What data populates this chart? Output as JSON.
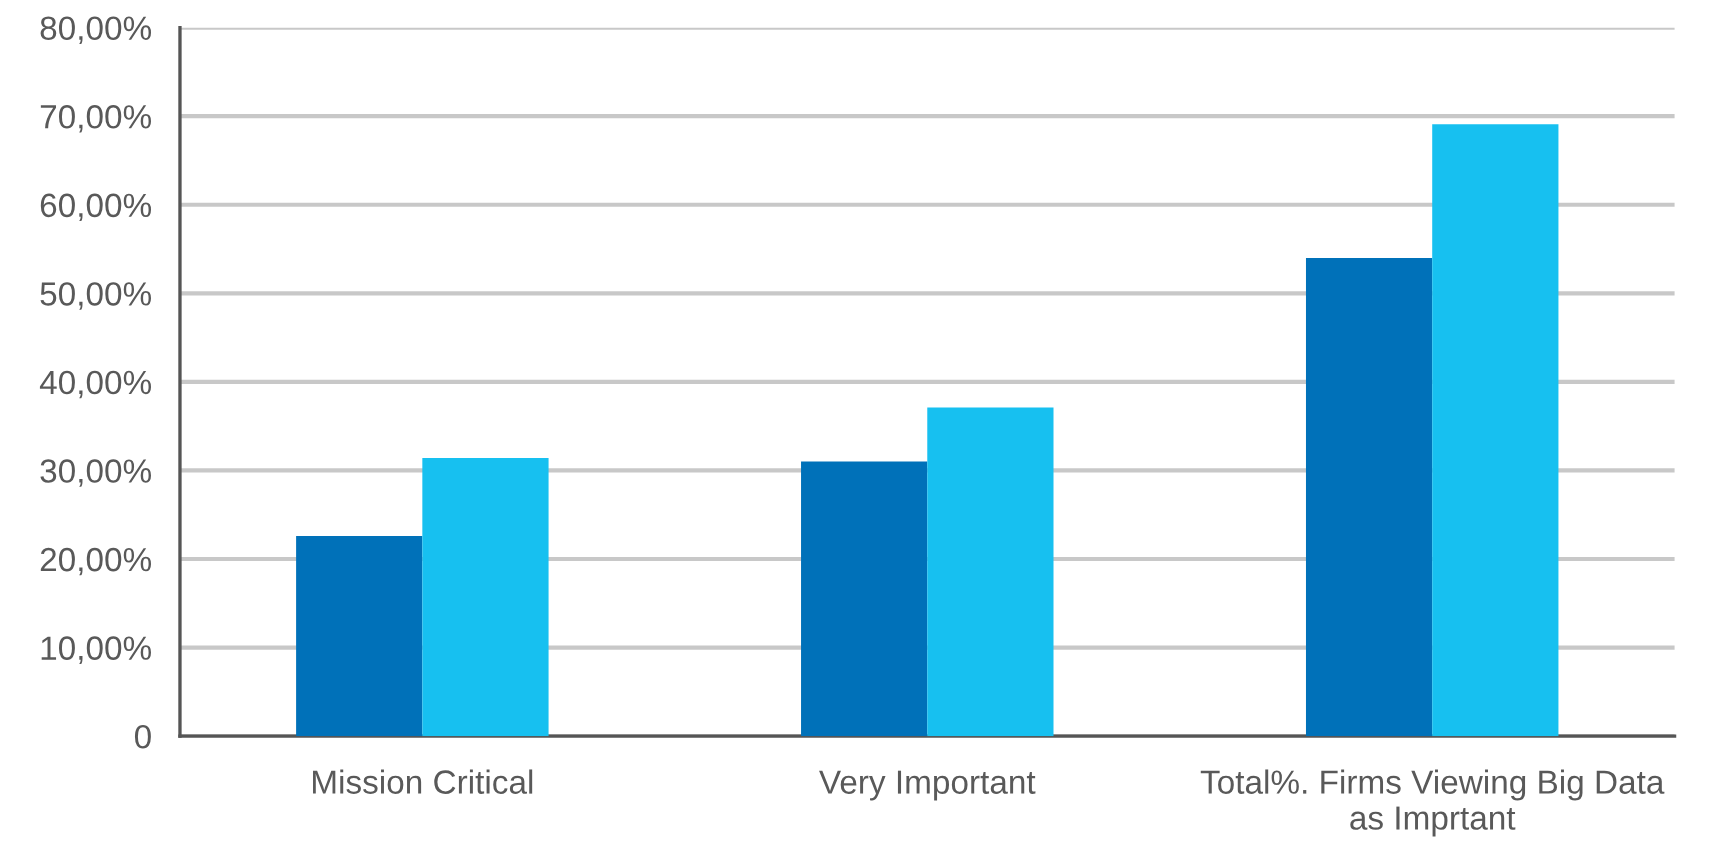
{
  "chart_data": {
    "type": "bar",
    "categories": [
      "Mission Critical",
      "Very Important",
      "Total%. Firms Viewing Big Data\nas Imprtant"
    ],
    "series": [
      {
        "color": "#0071b9",
        "values": [
          22.6,
          31.0,
          54.0
        ]
      },
      {
        "color": "#17c0f0",
        "values": [
          31.4,
          37.1,
          69.1
        ]
      }
    ],
    "ylim": [
      0,
      80
    ],
    "yticks": [
      {
        "value": 0,
        "label": "0"
      },
      {
        "value": 10,
        "label": "10,00%"
      },
      {
        "value": 20,
        "label": "20,00%"
      },
      {
        "value": 30,
        "label": "30,00%"
      },
      {
        "value": 40,
        "label": "40,00%"
      },
      {
        "value": 50,
        "label": "50,00%"
      },
      {
        "value": 60,
        "label": "60,00%"
      },
      {
        "value": 70,
        "label": "70,00%"
      },
      {
        "value": 80,
        "label": "80,00%"
      }
    ],
    "grid": "y"
  }
}
